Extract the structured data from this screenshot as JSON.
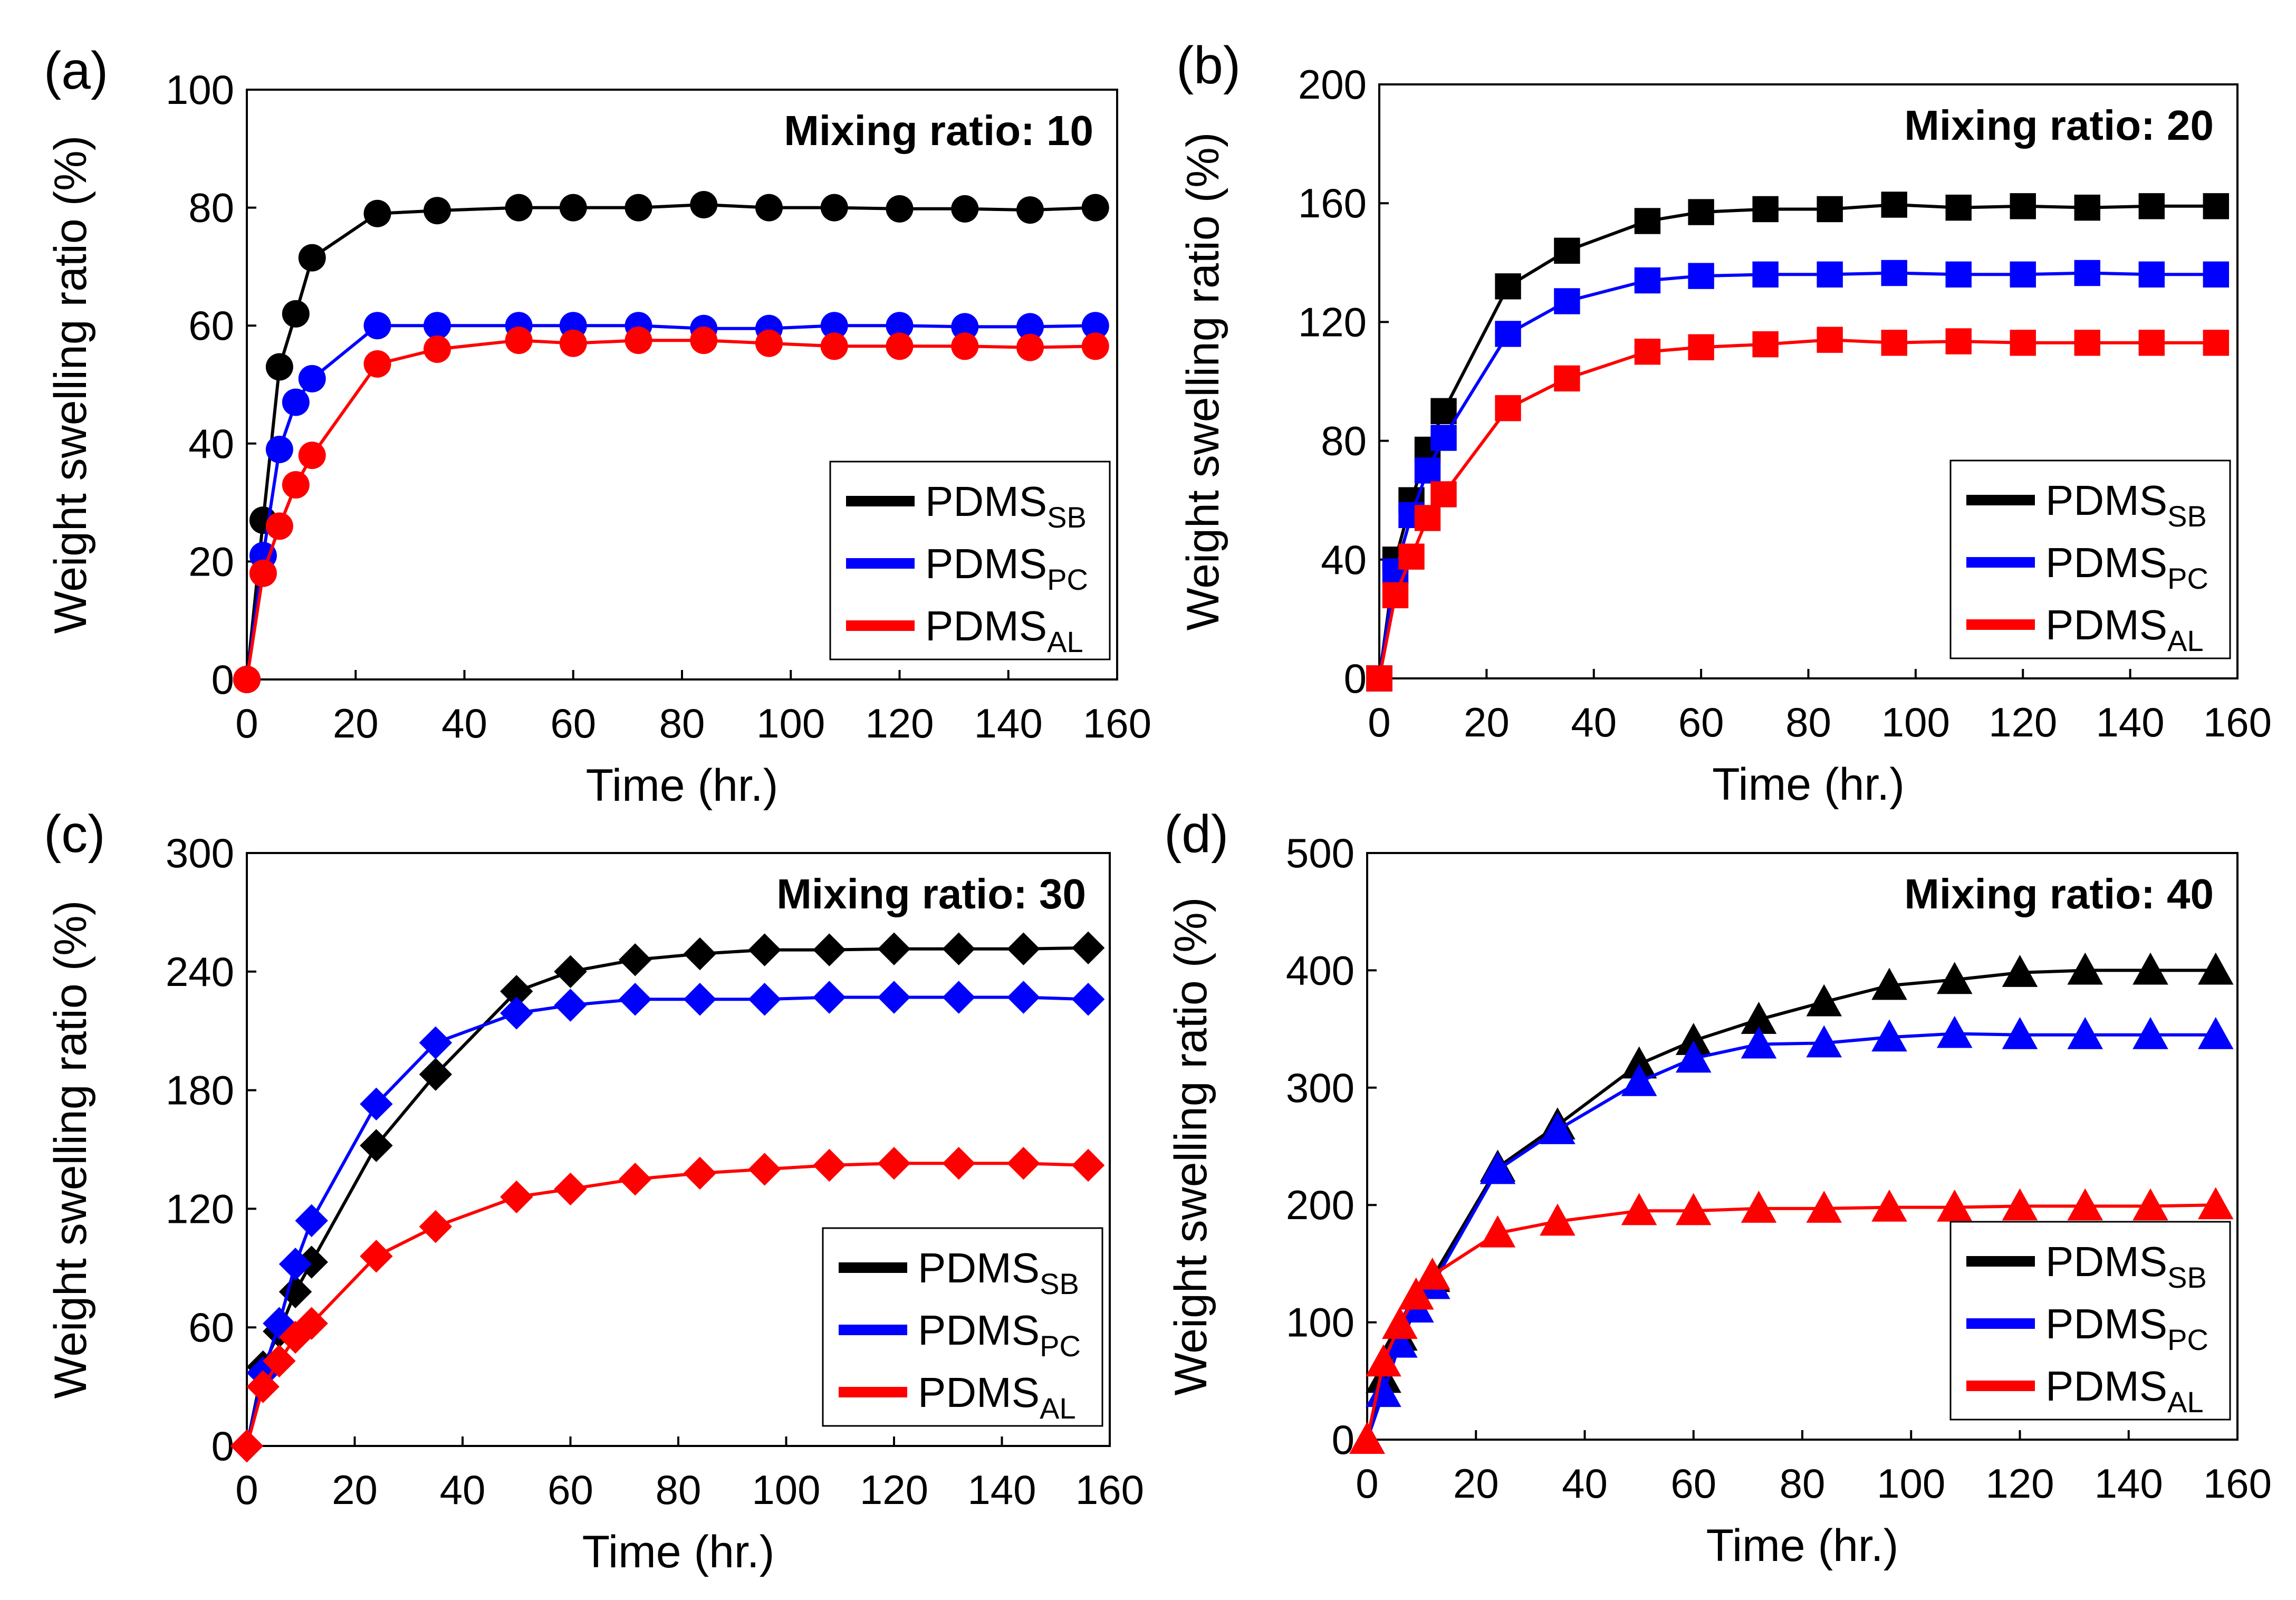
{
  "colors": {
    "PDMS_SB": "#000000",
    "PDMS_PC": "#0000ff",
    "PDMS_AL": "#ff0000"
  },
  "chart_data": [
    {
      "panel": "(a)",
      "type": "line",
      "title": "Mixing ratio: 10",
      "marker": "circle",
      "xlabel": "Time (hr.)",
      "ylabel": "Weight swelling ratio (%)",
      "xlim": [
        0,
        160
      ],
      "ylim": [
        0,
        100
      ],
      "xticks": [
        0,
        20,
        40,
        60,
        80,
        100,
        120,
        140,
        160
      ],
      "yticks": [
        0,
        20,
        40,
        60,
        80,
        100
      ],
      "grid": false,
      "legend_position": "bottom-right",
      "series": [
        {
          "name": "PDMS",
          "sub": "SB",
          "color": "#000000",
          "x": [
            0,
            3,
            6,
            9,
            12,
            24,
            35,
            50,
            60,
            72,
            84,
            96,
            108,
            120,
            132,
            144,
            156
          ],
          "y": [
            0,
            27,
            53,
            62,
            71.5,
            79,
            79.5,
            80,
            80,
            80,
            80.5,
            80,
            80,
            79.8,
            79.8,
            79.6,
            80
          ]
        },
        {
          "name": "PDMS",
          "sub": "PC",
          "color": "#0000ff",
          "x": [
            0,
            3,
            6,
            9,
            12,
            24,
            35,
            50,
            60,
            72,
            84,
            96,
            108,
            120,
            132,
            144,
            156
          ],
          "y": [
            0,
            21,
            39,
            47,
            51,
            60,
            60,
            60,
            60,
            60,
            59.5,
            59.5,
            60,
            60,
            59.8,
            59.8,
            60
          ]
        },
        {
          "name": "PDMS",
          "sub": "AL",
          "color": "#ff0000",
          "x": [
            0,
            3,
            6,
            9,
            12,
            24,
            35,
            50,
            60,
            72,
            84,
            96,
            108,
            120,
            132,
            144,
            156
          ],
          "y": [
            0,
            18,
            26,
            33,
            38,
            53.5,
            56,
            57.5,
            57,
            57.5,
            57.5,
            57,
            56.5,
            56.5,
            56.5,
            56.3,
            56.5
          ]
        }
      ]
    },
    {
      "panel": "(b)",
      "type": "line",
      "title": "Mixing ratio: 20",
      "marker": "square",
      "xlabel": "Time (hr.)",
      "ylabel": "Weight swelling ratio (%)",
      "xlim": [
        0,
        160
      ],
      "ylim": [
        0,
        200
      ],
      "xticks": [
        0,
        20,
        40,
        60,
        80,
        100,
        120,
        140,
        160
      ],
      "yticks": [
        0,
        40,
        80,
        120,
        160,
        200
      ],
      "grid": false,
      "legend_position": "bottom-right",
      "series": [
        {
          "name": "PDMS",
          "sub": "SB",
          "color": "#000000",
          "x": [
            0,
            3,
            6,
            9,
            12,
            24,
            35,
            50,
            60,
            72,
            84,
            96,
            108,
            120,
            132,
            144,
            156
          ],
          "y": [
            0,
            40,
            60,
            77,
            90,
            132,
            144,
            154,
            157,
            158,
            158,
            159.5,
            158.5,
            159,
            158.5,
            159,
            159
          ]
        },
        {
          "name": "PDMS",
          "sub": "PC",
          "color": "#0000ff",
          "x": [
            0,
            3,
            6,
            9,
            12,
            24,
            35,
            50,
            60,
            72,
            84,
            96,
            108,
            120,
            132,
            144,
            156
          ],
          "y": [
            0,
            36,
            55,
            70,
            81,
            116,
            127,
            134,
            135.5,
            136,
            136,
            136.5,
            136,
            136,
            136.5,
            136,
            136
          ]
        },
        {
          "name": "PDMS",
          "sub": "AL",
          "color": "#ff0000",
          "x": [
            0,
            3,
            6,
            9,
            12,
            24,
            35,
            50,
            60,
            72,
            84,
            96,
            108,
            120,
            132,
            144,
            156
          ],
          "y": [
            0,
            28,
            41,
            54,
            62,
            91,
            101,
            110,
            111.5,
            112.5,
            114,
            113,
            113.5,
            113,
            113,
            113,
            113
          ]
        }
      ]
    },
    {
      "panel": "(c)",
      "type": "line",
      "title": "Mixing ratio: 30",
      "marker": "diamond",
      "xlabel": "Time (hr.)",
      "ylabel": "Weight swelling ratio (%)",
      "xlim": [
        0,
        160
      ],
      "ylim": [
        0,
        300
      ],
      "xticks": [
        0,
        20,
        40,
        60,
        80,
        100,
        120,
        140,
        160
      ],
      "yticks": [
        0,
        60,
        120,
        180,
        240,
        300
      ],
      "grid": false,
      "legend_position": "bottom-right",
      "series": [
        {
          "name": "PDMS",
          "sub": "SB",
          "color": "#000000",
          "x": [
            0,
            3,
            6,
            9,
            12,
            24,
            35,
            50,
            60,
            72,
            84,
            96,
            108,
            120,
            132,
            144,
            156
          ],
          "y": [
            0,
            40,
            58,
            78,
            93,
            152,
            188,
            230,
            240,
            246,
            249,
            251,
            251,
            251.5,
            251.5,
            251.5,
            252
          ]
        },
        {
          "name": "PDMS",
          "sub": "PC",
          "color": "#0000ff",
          "x": [
            0,
            3,
            6,
            9,
            12,
            24,
            35,
            50,
            60,
            72,
            84,
            96,
            108,
            120,
            132,
            144,
            156
          ],
          "y": [
            0,
            37,
            62,
            92,
            114,
            173,
            204,
            219,
            223,
            226,
            226,
            226,
            227,
            227,
            227,
            227,
            226
          ]
        },
        {
          "name": "PDMS",
          "sub": "AL",
          "color": "#ff0000",
          "x": [
            0,
            3,
            6,
            9,
            12,
            24,
            35,
            50,
            60,
            72,
            84,
            96,
            108,
            120,
            132,
            144,
            156
          ],
          "y": [
            0,
            30,
            43,
            55,
            62,
            96,
            111,
            126,
            130,
            135,
            138,
            140,
            142,
            143,
            143,
            143,
            142
          ]
        }
      ]
    },
    {
      "panel": "(d)",
      "type": "line",
      "title": "Mixing ratio: 40",
      "marker": "triangle",
      "xlabel": "Time (hr.)",
      "ylabel": "Weight swelling ratio (%)",
      "xlim": [
        0,
        160
      ],
      "ylim": [
        0,
        500
      ],
      "xticks": [
        0,
        20,
        40,
        60,
        80,
        100,
        120,
        140,
        160
      ],
      "yticks": [
        0,
        100,
        200,
        300,
        400,
        500
      ],
      "grid": false,
      "legend_position": "bottom-right",
      "series": [
        {
          "name": "PDMS",
          "sub": "SB",
          "color": "#000000",
          "x": [
            0,
            3,
            6,
            9,
            12,
            24,
            35,
            50,
            60,
            72,
            84,
            96,
            108,
            120,
            132,
            144,
            156
          ],
          "y": [
            0,
            52,
            88,
            112,
            138,
            232,
            268,
            320,
            340,
            358,
            373,
            387,
            392,
            398,
            400,
            400,
            400
          ]
        },
        {
          "name": "PDMS",
          "sub": "PC",
          "color": "#0000ff",
          "x": [
            0,
            3,
            6,
            9,
            12,
            24,
            35,
            50,
            60,
            72,
            84,
            96,
            108,
            120,
            132,
            144,
            156
          ],
          "y": [
            0,
            40,
            82,
            112,
            132,
            230,
            264,
            305,
            325,
            337,
            338,
            343,
            346,
            345,
            345,
            345,
            345
          ]
        },
        {
          "name": "PDMS",
          "sub": "AL",
          "color": "#ff0000",
          "x": [
            0,
            3,
            6,
            9,
            12,
            24,
            35,
            50,
            60,
            72,
            84,
            96,
            108,
            120,
            132,
            144,
            156
          ],
          "y": [
            0,
            66,
            98,
            123,
            140,
            176,
            186,
            195,
            195,
            197,
            197,
            198,
            198,
            199,
            199,
            199,
            200
          ]
        }
      ]
    }
  ]
}
